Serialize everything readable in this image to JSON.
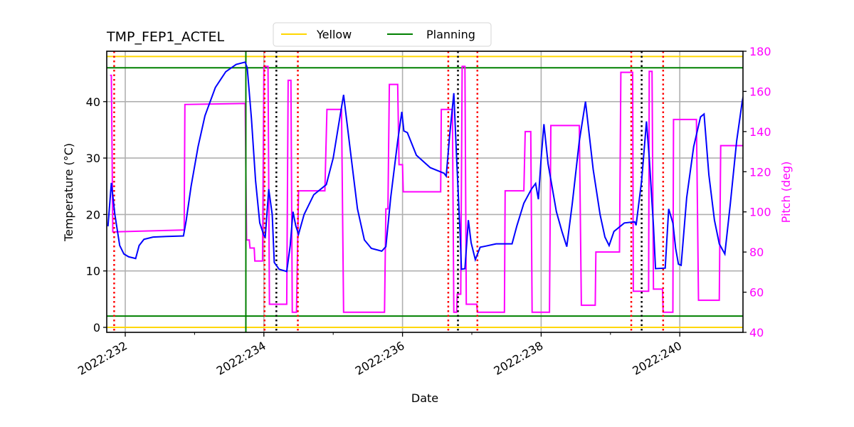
{
  "chart_data": {
    "type": "line",
    "title": "TMP_FEP1_ACTEL",
    "xlabel": "Date",
    "ylabel": "Temperature ($^\\circ$C)",
    "ylabel_display": "Temperature (°C)",
    "ylabel_right": "Pitch (deg)",
    "xlim": [
      231.75,
      240.93
    ],
    "ylim": [
      -0.9,
      49
    ],
    "ylim_right": [
      40,
      180
    ],
    "x_ticks": [
      232,
      234,
      236,
      238,
      240
    ],
    "x_tick_labels": [
      "2022:232",
      "2022:234",
      "2022:236",
      "2022:238",
      "2022:240"
    ],
    "x_minor_ticks": [
      233,
      235,
      237,
      239
    ],
    "y_ticks": [
      0,
      10,
      20,
      30,
      40
    ],
    "y_tick_labels": [
      "0",
      "10",
      "20",
      "30",
      "40"
    ],
    "y_ticks_right": [
      40,
      60,
      80,
      100,
      120,
      140,
      160,
      180
    ],
    "y_tick_labels_right": [
      "40",
      "60",
      "80",
      "100",
      "120",
      "140",
      "160",
      "180"
    ],
    "grid": true,
    "legend": {
      "position": "top center (above plot)",
      "entries": [
        {
          "label": "Yellow",
          "color": "#ffd700"
        },
        {
          "label": "Planning",
          "color": "#008000"
        }
      ]
    },
    "limit_lines": [
      {
        "name": "Yellow",
        "values": [
          0,
          48
        ],
        "color": "#ffd700"
      },
      {
        "name": "Planning",
        "values": [
          2,
          46
        ],
        "color": "#008000"
      }
    ],
    "planning_vline": {
      "x": 233.74,
      "color": "#008000"
    },
    "red_dotted_vlines": [
      231.84,
      234.01,
      234.49,
      236.66,
      237.08,
      239.3,
      239.76
    ],
    "black_dotted_vlines": [
      234.18,
      236.8,
      239.45
    ],
    "series": [
      {
        "name": "TMP_FEP1_ACTEL",
        "axis": "left",
        "color": "#0000ff",
        "points": [
          [
            231.75,
            17.9
          ],
          [
            231.8,
            25.6
          ],
          [
            231.85,
            20
          ],
          [
            231.92,
            14.5
          ],
          [
            231.98,
            13.0
          ],
          [
            232.05,
            12.5
          ],
          [
            232.12,
            12.3
          ],
          [
            232.15,
            12.2
          ],
          [
            232.2,
            14.5
          ],
          [
            232.27,
            15.6
          ],
          [
            232.4,
            16.0
          ],
          [
            232.6,
            16.1
          ],
          [
            232.84,
            16.2
          ],
          [
            232.88,
            19
          ],
          [
            232.95,
            25
          ],
          [
            233.05,
            32
          ],
          [
            233.15,
            37.5
          ],
          [
            233.3,
            42.5
          ],
          [
            233.45,
            45.3
          ],
          [
            233.6,
            46.6
          ],
          [
            233.73,
            47.0
          ],
          [
            233.76,
            46
          ],
          [
            233.82,
            37
          ],
          [
            233.88,
            26
          ],
          [
            233.94,
            18.5
          ],
          [
            234.0,
            16.3
          ],
          [
            234.02,
            16.0
          ],
          [
            234.07,
            24.5
          ],
          [
            234.12,
            20
          ],
          [
            234.15,
            11.5
          ],
          [
            234.22,
            10.3
          ],
          [
            234.33,
            9.9
          ],
          [
            234.38,
            14.5
          ],
          [
            234.42,
            20.5
          ],
          [
            234.46,
            18
          ],
          [
            234.5,
            16.5
          ],
          [
            234.58,
            20
          ],
          [
            234.72,
            23.5
          ],
          [
            234.9,
            25.3
          ],
          [
            235.0,
            30
          ],
          [
            235.1,
            37.5
          ],
          [
            235.15,
            41.2
          ],
          [
            235.25,
            31
          ],
          [
            235.35,
            21
          ],
          [
            235.45,
            15.5
          ],
          [
            235.55,
            14.0
          ],
          [
            235.7,
            13.5
          ],
          [
            235.76,
            14.3
          ],
          [
            235.83,
            23
          ],
          [
            235.93,
            33
          ],
          [
            235.99,
            38.2
          ],
          [
            236.02,
            34.8
          ],
          [
            236.07,
            34.5
          ],
          [
            236.2,
            30.5
          ],
          [
            236.4,
            28.3
          ],
          [
            236.6,
            27.3
          ],
          [
            236.63,
            26.8
          ],
          [
            236.68,
            34
          ],
          [
            236.74,
            41.5
          ],
          [
            236.78,
            30
          ],
          [
            236.83,
            17
          ],
          [
            236.85,
            10.3
          ],
          [
            236.9,
            10.4
          ],
          [
            236.95,
            19
          ],
          [
            236.99,
            15
          ],
          [
            237.05,
            12.0
          ],
          [
            237.12,
            14.2
          ],
          [
            237.2,
            14.4
          ],
          [
            237.35,
            14.8
          ],
          [
            237.58,
            14.8
          ],
          [
            237.65,
            18
          ],
          [
            237.75,
            22
          ],
          [
            237.86,
            24.5
          ],
          [
            237.92,
            25.5
          ],
          [
            237.96,
            22.7
          ],
          [
            238.0,
            30
          ],
          [
            238.04,
            36.0
          ],
          [
            238.1,
            29
          ],
          [
            238.22,
            20.5
          ],
          [
            238.3,
            17
          ],
          [
            238.37,
            14.3
          ],
          [
            238.45,
            22
          ],
          [
            238.55,
            33
          ],
          [
            238.64,
            40.0
          ],
          [
            238.75,
            28
          ],
          [
            238.85,
            20
          ],
          [
            238.92,
            16.0
          ],
          [
            238.98,
            14.5
          ],
          [
            239.05,
            17
          ],
          [
            239.2,
            18.5
          ],
          [
            239.35,
            18.7
          ],
          [
            239.37,
            18.1
          ],
          [
            239.45,
            26
          ],
          [
            239.52,
            36.5
          ],
          [
            239.56,
            30
          ],
          [
            239.62,
            18
          ],
          [
            239.65,
            10.4
          ],
          [
            239.79,
            10.5
          ],
          [
            239.84,
            21
          ],
          [
            239.9,
            18.5
          ],
          [
            239.94,
            14
          ],
          [
            239.98,
            11.2
          ],
          [
            240.02,
            11.0
          ],
          [
            240.1,
            23
          ],
          [
            240.2,
            32
          ],
          [
            240.3,
            37.3
          ],
          [
            240.35,
            37.8
          ],
          [
            240.42,
            27
          ],
          [
            240.5,
            19
          ],
          [
            240.57,
            14.8
          ],
          [
            240.65,
            13.0
          ],
          [
            240.73,
            22
          ],
          [
            240.82,
            33
          ],
          [
            240.9,
            40
          ],
          [
            240.93,
            41.8
          ]
        ]
      },
      {
        "name": "Pitch",
        "axis": "right",
        "color": "#ff00ff",
        "points": [
          [
            231.78,
            168
          ],
          [
            231.8,
            168
          ],
          [
            231.82,
            90
          ],
          [
            232.85,
            91
          ],
          [
            232.86,
            153.5
          ],
          [
            233.73,
            154
          ],
          [
            233.75,
            86
          ],
          [
            233.79,
            86
          ],
          [
            233.8,
            82
          ],
          [
            233.86,
            82
          ],
          [
            233.87,
            75.5
          ],
          [
            233.98,
            75.5
          ],
          [
            234.0,
            172.5
          ],
          [
            234.06,
            172.5
          ],
          [
            234.08,
            54
          ],
          [
            234.33,
            54
          ],
          [
            234.35,
            165.5
          ],
          [
            234.39,
            165.5
          ],
          [
            234.41,
            50
          ],
          [
            234.47,
            50
          ],
          [
            234.5,
            110.5
          ],
          [
            234.88,
            110.5
          ],
          [
            234.91,
            151
          ],
          [
            235.12,
            151
          ],
          [
            235.15,
            50
          ],
          [
            235.74,
            50
          ],
          [
            235.76,
            101.5
          ],
          [
            235.79,
            101.5
          ],
          [
            235.81,
            163.5
          ],
          [
            235.93,
            163.5
          ],
          [
            235.95,
            123.5
          ],
          [
            236.0,
            123.5
          ],
          [
            236.01,
            110
          ],
          [
            236.55,
            110
          ],
          [
            236.56,
            151
          ],
          [
            236.72,
            151
          ],
          [
            236.74,
            50
          ],
          [
            236.78,
            50
          ],
          [
            236.79,
            59
          ],
          [
            236.84,
            59
          ],
          [
            236.86,
            172.5
          ],
          [
            236.9,
            172.5
          ],
          [
            236.92,
            54
          ],
          [
            237.07,
            54
          ],
          [
            237.08,
            50
          ],
          [
            237.47,
            50
          ],
          [
            237.48,
            110.5
          ],
          [
            237.75,
            110.5
          ],
          [
            237.77,
            140
          ],
          [
            237.85,
            140
          ],
          [
            237.87,
            50
          ],
          [
            238.12,
            50
          ],
          [
            238.14,
            143
          ],
          [
            238.55,
            143
          ],
          [
            238.58,
            53.5
          ],
          [
            238.78,
            53.5
          ],
          [
            238.79,
            80
          ],
          [
            239.13,
            80
          ],
          [
            239.15,
            169.5
          ],
          [
            239.32,
            169.5
          ],
          [
            239.33,
            60.5
          ],
          [
            239.55,
            60.5
          ],
          [
            239.56,
            170
          ],
          [
            239.6,
            170
          ],
          [
            239.62,
            61.5
          ],
          [
            239.75,
            61.5
          ],
          [
            239.76,
            50
          ],
          [
            239.9,
            50
          ],
          [
            239.91,
            146
          ],
          [
            240.24,
            146
          ],
          [
            240.27,
            56
          ],
          [
            240.57,
            56
          ],
          [
            240.59,
            133
          ],
          [
            240.93,
            133
          ]
        ]
      }
    ]
  }
}
